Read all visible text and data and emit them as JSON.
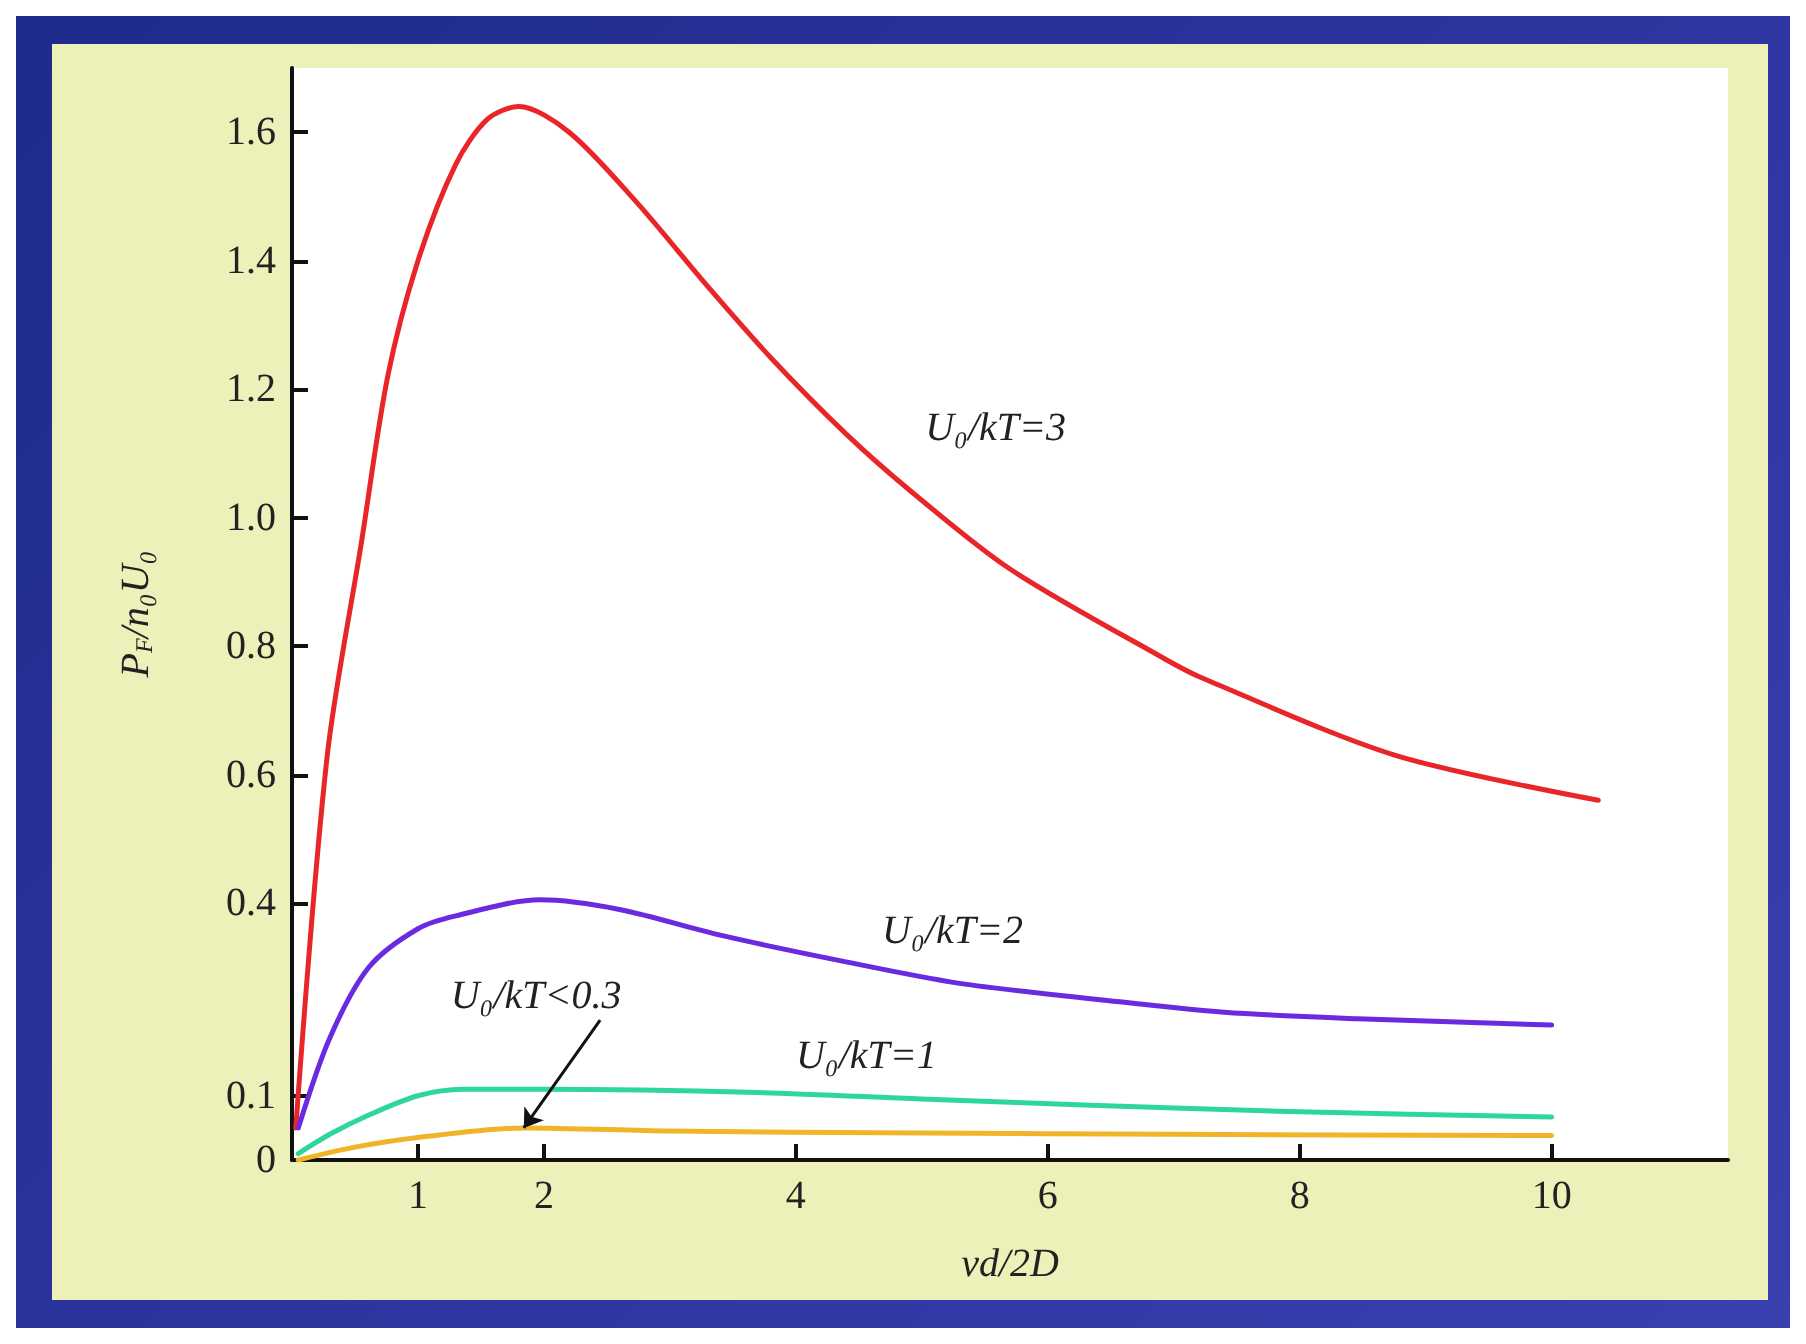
{
  "chart_data": {
    "type": "line",
    "xlabel": "vd/2D",
    "ylabel": "P$_{F}$/n₀U₀",
    "xlim": [
      0,
      11.4
    ],
    "xticks": [
      1,
      2,
      4,
      6,
      8,
      10
    ],
    "ylim": [
      0,
      1.7
    ],
    "yticks": [
      0,
      0.1,
      0.4,
      0.6,
      0.8,
      {
        "value": 1,
        "label": "1.0"
      },
      1.2,
      1.4,
      1.6
    ],
    "grid": false,
    "legend": false,
    "marker": "none",
    "line_style": "solid",
    "series": [
      {
        "name": "U₀/kT=3",
        "color": "#e8262a",
        "x": [
          0.03,
          0.28,
          0.55,
          0.76,
          1.0,
          1.3,
          1.55,
          1.8,
          2.2,
          2.74,
          3.3,
          3.82,
          4.4,
          4.92,
          5.7,
          6.93,
          7.23,
          8.76,
          10.37
        ],
        "values": [
          0.05,
          0.63,
          0.96,
          1.22,
          1.4,
          1.55,
          1.62,
          1.64,
          1.6,
          1.49,
          1.36,
          1.245,
          1.13,
          1.04,
          0.92,
          0.78,
          0.75,
          0.63,
          0.56
        ]
      },
      {
        "name": "U₀/kT=2",
        "color": "#6a2ae0",
        "x": [
          0.05,
          0.3,
          0.61,
          1.0,
          1.3,
          1.97,
          2.6,
          3.4,
          4.36,
          5.3,
          6.4,
          7.4,
          8.46,
          10
        ],
        "values": [
          0.05,
          0.19,
          0.3,
          0.36,
          0.38,
          0.405,
          0.39,
          0.35,
          0.31,
          0.275,
          0.25,
          0.23,
          0.22,
          0.21
        ]
      },
      {
        "name": "U₀/kT=1",
        "color": "#2fd69a",
        "x": [
          0.05,
          0.3,
          0.61,
          1.0,
          1.36,
          2,
          3.7,
          5,
          6.4,
          8,
          10
        ],
        "values": [
          0.01,
          0.04,
          0.07,
          0.1,
          0.11,
          0.11,
          0.105,
          0.095,
          0.085,
          0.075,
          0.067
        ]
      },
      {
        "name": "U₀/kT<0.3",
        "color": "#f0b429",
        "x": [
          0.05,
          0.5,
          1.0,
          1.84,
          3,
          5,
          7,
          10
        ],
        "values": [
          0.0,
          0.02,
          0.035,
          0.05,
          0.045,
          0.042,
          0.04,
          0.038
        ]
      }
    ]
  }
}
